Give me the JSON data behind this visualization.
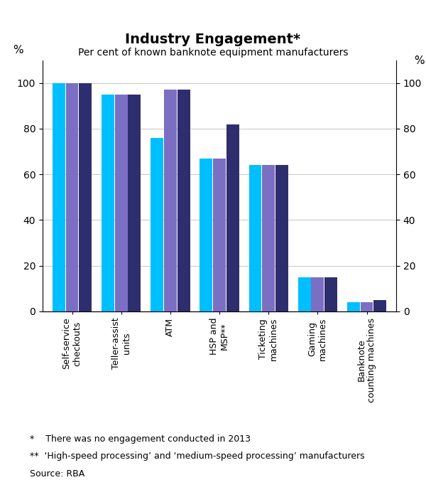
{
  "title": "Industry Engagement*",
  "subtitle": "Per cent of known banknote equipment manufacturers",
  "categories": [
    "Self-service\ncheckouts",
    "Teller-assist\nunits",
    "ATM",
    "HSP and\nMSP**",
    "Ticketing\nmachines",
    "Gaming\nmachines",
    "Banknote\ncounting machines"
  ],
  "series": {
    "2010": [
      100,
      95,
      76,
      67,
      64,
      15,
      4
    ],
    "2011": [
      100,
      95,
      97,
      67,
      64,
      15,
      4
    ],
    "2012": [
      100,
      95,
      97,
      82,
      64,
      15,
      5
    ]
  },
  "colors": {
    "2010": "#00BFFF",
    "2011": "#7B6FC4",
    "2012": "#2E2E6E"
  },
  "ylim": [
    0,
    110
  ],
  "yticks": [
    0,
    20,
    40,
    60,
    80,
    100
  ],
  "ylabel_left": "%",
  "ylabel_right": "%",
  "footnote1": "*    There was no engagement conducted in 2013",
  "footnote2": "**  ‘High-speed processing’ and ‘medium-speed processing’ manufacturers",
  "footnote3": "Source: RBA",
  "background_color": "#ffffff",
  "grid_color": "#cccccc"
}
